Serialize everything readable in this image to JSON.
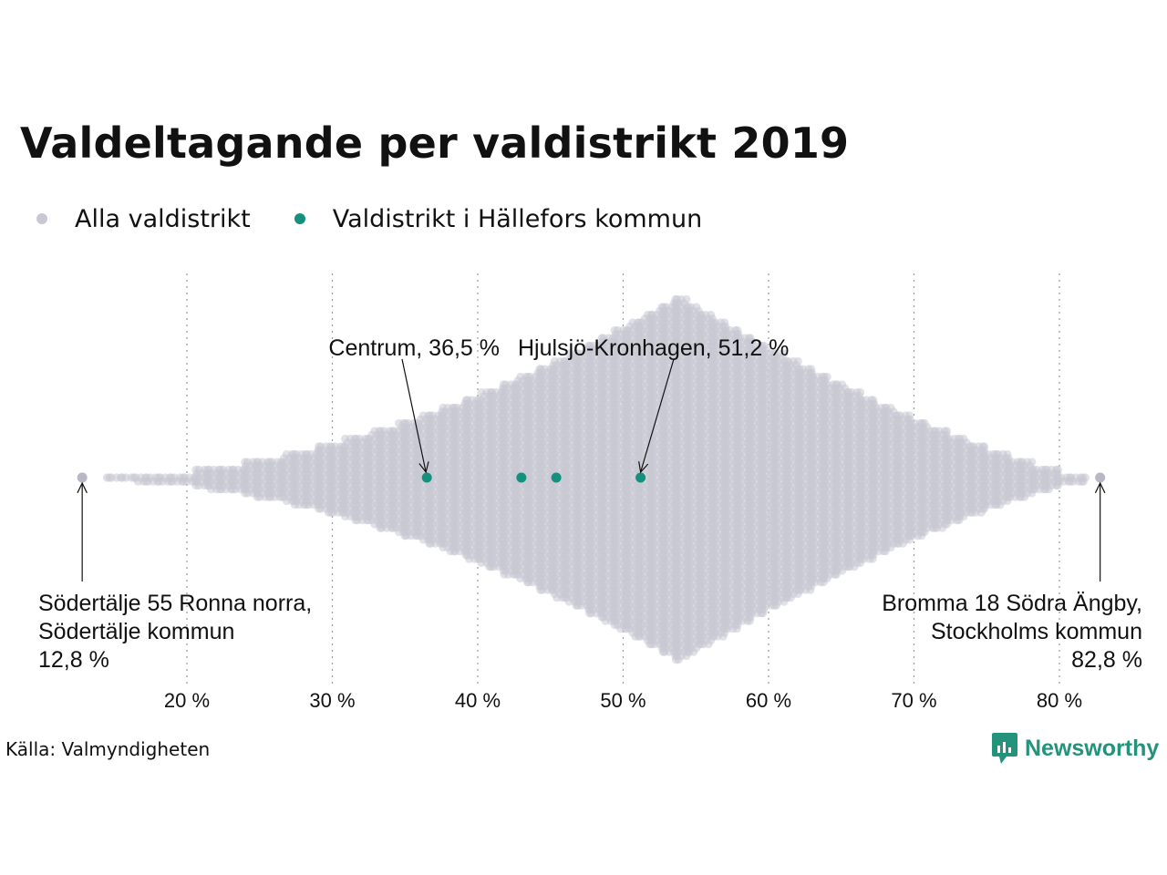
{
  "title": "Valdeltagande per valdistrikt 2019",
  "legend": [
    {
      "label": "Alla valdistrikt",
      "color": "#c9c8d4"
    },
    {
      "label": "Valdistrikt i Hällefors kommun",
      "color": "#14907e"
    }
  ],
  "source": "Källa: Valmyndigheten",
  "brand": "Newsworthy",
  "colors": {
    "background_points": "#c9c8d4",
    "highlight": "#14907e",
    "logo": "#23937c"
  },
  "chart_data": {
    "type": "scatter",
    "subtype": "beeswarm",
    "xlabel": "",
    "ylabel": "",
    "xlim": [
      12,
      84
    ],
    "x_ticks": [
      20,
      30,
      40,
      50,
      60,
      70,
      80
    ],
    "x_tick_labels": [
      "20 %",
      "30 %",
      "40 %",
      "50 %",
      "60 %",
      "70 %",
      "80 %"
    ],
    "grid": "vertical dotted",
    "distribution_peak": 53.8,
    "series": [
      {
        "name": "Alla valdistrikt",
        "x_min": 12.8,
        "x_max": 82.8
      },
      {
        "name": "Valdistrikt i Hällefors kommun",
        "x": [
          36.5,
          43.0,
          45.4,
          51.2
        ]
      }
    ],
    "annotations": [
      {
        "id": "centrum",
        "x": 36.5,
        "lines": [
          "Centrum, 36,5 %"
        ]
      },
      {
        "id": "hjulsjo",
        "x": 51.2,
        "lines": [
          "Hjulsjö-Kronhagen, 51,2 %"
        ]
      },
      {
        "id": "min",
        "x": 12.8,
        "lines": [
          "Södertälje 55 Ronna norra,",
          "Södertälje kommun",
          "12,8 %"
        ]
      },
      {
        "id": "max",
        "x": 82.8,
        "lines": [
          "Bromma 18 Södra Ängby,",
          "Stockholms kommun",
          "82,8 %"
        ]
      }
    ]
  }
}
